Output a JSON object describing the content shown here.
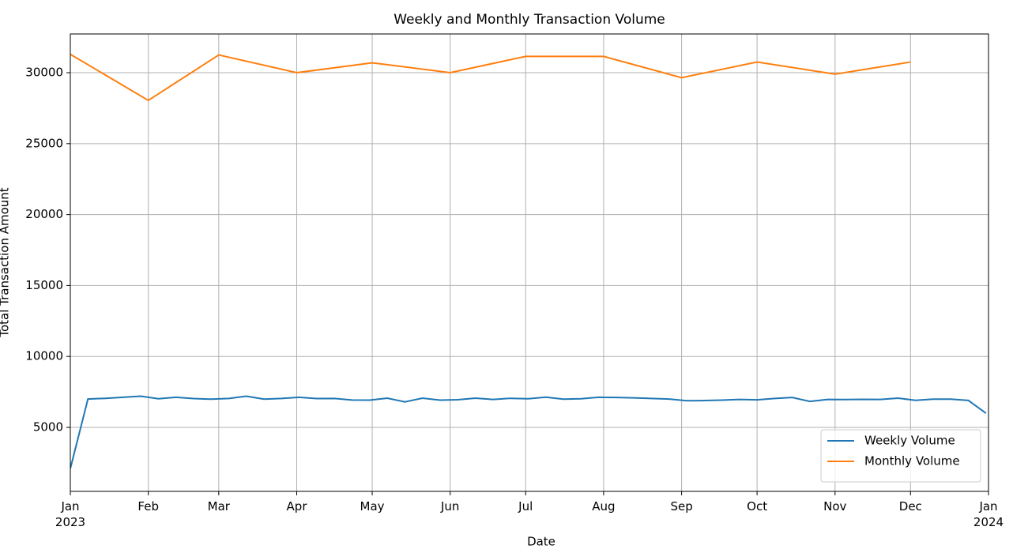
{
  "chart_data": {
    "type": "line",
    "title": "Weekly and Monthly Transaction Volume",
    "xlabel": "Date",
    "ylabel": "Total Transaction Amount",
    "xlim": [
      0,
      365
    ],
    "xticks": [
      {
        "value": 0,
        "label": "Jan\n2023"
      },
      {
        "value": 31,
        "label": "Feb"
      },
      {
        "value": 59,
        "label": "Mar"
      },
      {
        "value": 90,
        "label": "Apr"
      },
      {
        "value": 120,
        "label": "May"
      },
      {
        "value": 151,
        "label": "Jun"
      },
      {
        "value": 181,
        "label": "Jul"
      },
      {
        "value": 212,
        "label": "Aug"
      },
      {
        "value": 243,
        "label": "Sep"
      },
      {
        "value": 273,
        "label": "Oct"
      },
      {
        "value": 304,
        "label": "Nov"
      },
      {
        "value": 334,
        "label": "Dec"
      },
      {
        "value": 365,
        "label": "Jan\n2024"
      }
    ],
    "ylim": [
      490,
      32730
    ],
    "yticks": [
      5000,
      10000,
      15000,
      20000,
      25000,
      30000
    ],
    "grid": true,
    "legend": "lower right",
    "series": [
      {
        "name": "Weekly Volume",
        "color": "#1f77b4",
        "x": [
          0,
          7,
          14,
          21,
          28,
          35,
          42,
          49,
          56,
          63,
          70,
          77,
          84,
          91,
          98,
          105,
          112,
          119,
          126,
          133,
          140,
          147,
          154,
          161,
          168,
          175,
          182,
          189,
          196,
          203,
          210,
          217,
          224,
          231,
          238,
          245,
          252,
          259,
          266,
          273,
          280,
          287,
          294,
          301,
          308,
          315,
          322,
          329,
          336,
          343,
          350,
          357,
          364
        ],
        "values": [
          2100,
          7000,
          7050,
          7120,
          7200,
          7020,
          7120,
          7030,
          6990,
          7040,
          7200,
          6990,
          7040,
          7120,
          7030,
          7040,
          6930,
          6920,
          7060,
          6800,
          7060,
          6920,
          6950,
          7060,
          6970,
          7050,
          7020,
          7130,
          6990,
          7020,
          7120,
          7110,
          7080,
          7040,
          7000,
          6880,
          6890,
          6920,
          6970,
          6940,
          7040,
          7110,
          6830,
          6970,
          6960,
          6980,
          6970,
          7060,
          6910,
          6990,
          6990,
          6900,
          6000
        ]
      },
      {
        "name": "Monthly Volume",
        "color": "#ff7f0e",
        "x": [
          0,
          31,
          59,
          90,
          120,
          151,
          181,
          212,
          243,
          273,
          304,
          334
        ],
        "values": [
          31300,
          28050,
          31250,
          30000,
          30700,
          30000,
          31150,
          31150,
          29650,
          30750,
          29900,
          30750
        ]
      }
    ]
  }
}
